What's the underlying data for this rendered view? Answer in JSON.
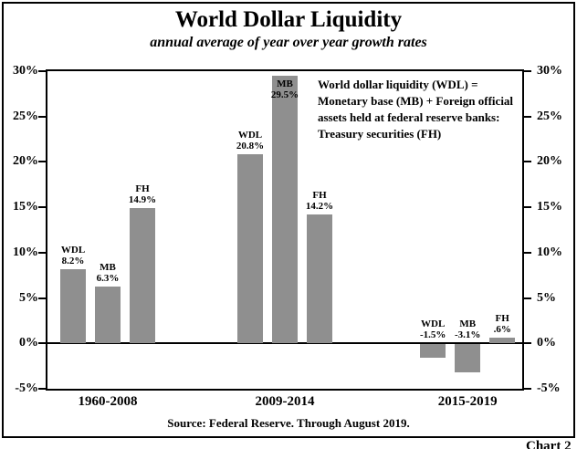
{
  "header": {
    "title": "World Dollar Liquidity",
    "subtitle": "annual average of year over year growth rates"
  },
  "annotation": {
    "lines": [
      "World dollar liquidity (WDL) =",
      "Monetary base (MB) + Foreign official",
      "assets held at federal reserve banks:",
      "Treasury securities (FH)"
    ]
  },
  "footer": {
    "source": "Source: Federal Reserve. Through August 2019.",
    "corner": "Chart 2"
  },
  "chart_data": {
    "type": "bar",
    "title": "World Dollar Liquidity",
    "subtitle": "annual average of year over year growth rates",
    "xlabel": "",
    "ylabel": "",
    "ylim": [
      -5,
      30
    ],
    "ytick_values": [
      30,
      25,
      20,
      15,
      10,
      5,
      0,
      -5
    ],
    "ytick_labels": [
      "30%",
      "25%",
      "20%",
      "15%",
      "10%",
      "5%",
      "0%",
      "-5%"
    ],
    "grid": false,
    "legend": "none",
    "bar_color": "#8f8f8f",
    "categories": [
      "1960-2008",
      "2009-2014",
      "2015-2019"
    ],
    "series_labels": [
      "WDL",
      "MB",
      "FH"
    ],
    "groups": [
      {
        "label": "1960-2008",
        "bars": [
          {
            "name": "WDL",
            "value": 8.2,
            "display": "8.2%"
          },
          {
            "name": "MB",
            "value": 6.3,
            "display": "6.3%"
          },
          {
            "name": "FH",
            "value": 14.9,
            "display": "14.9%"
          }
        ]
      },
      {
        "label": "2009-2014",
        "bars": [
          {
            "name": "WDL",
            "value": 20.8,
            "display": "20.8%"
          },
          {
            "name": "MB",
            "value": 29.5,
            "display": "29.5%",
            "label_inside": true
          },
          {
            "name": "FH",
            "value": 14.2,
            "display": "14.2%"
          }
        ]
      },
      {
        "label": "2015-2019",
        "bars": [
          {
            "name": "WDL",
            "value": -1.5,
            "display": "-1.5%"
          },
          {
            "name": "MB",
            "value": -3.1,
            "display": "-3.1%"
          },
          {
            "name": "FH",
            "value": 0.6,
            "display": ".6%"
          }
        ]
      }
    ],
    "source": "Source: Federal Reserve. Through August 2019."
  }
}
